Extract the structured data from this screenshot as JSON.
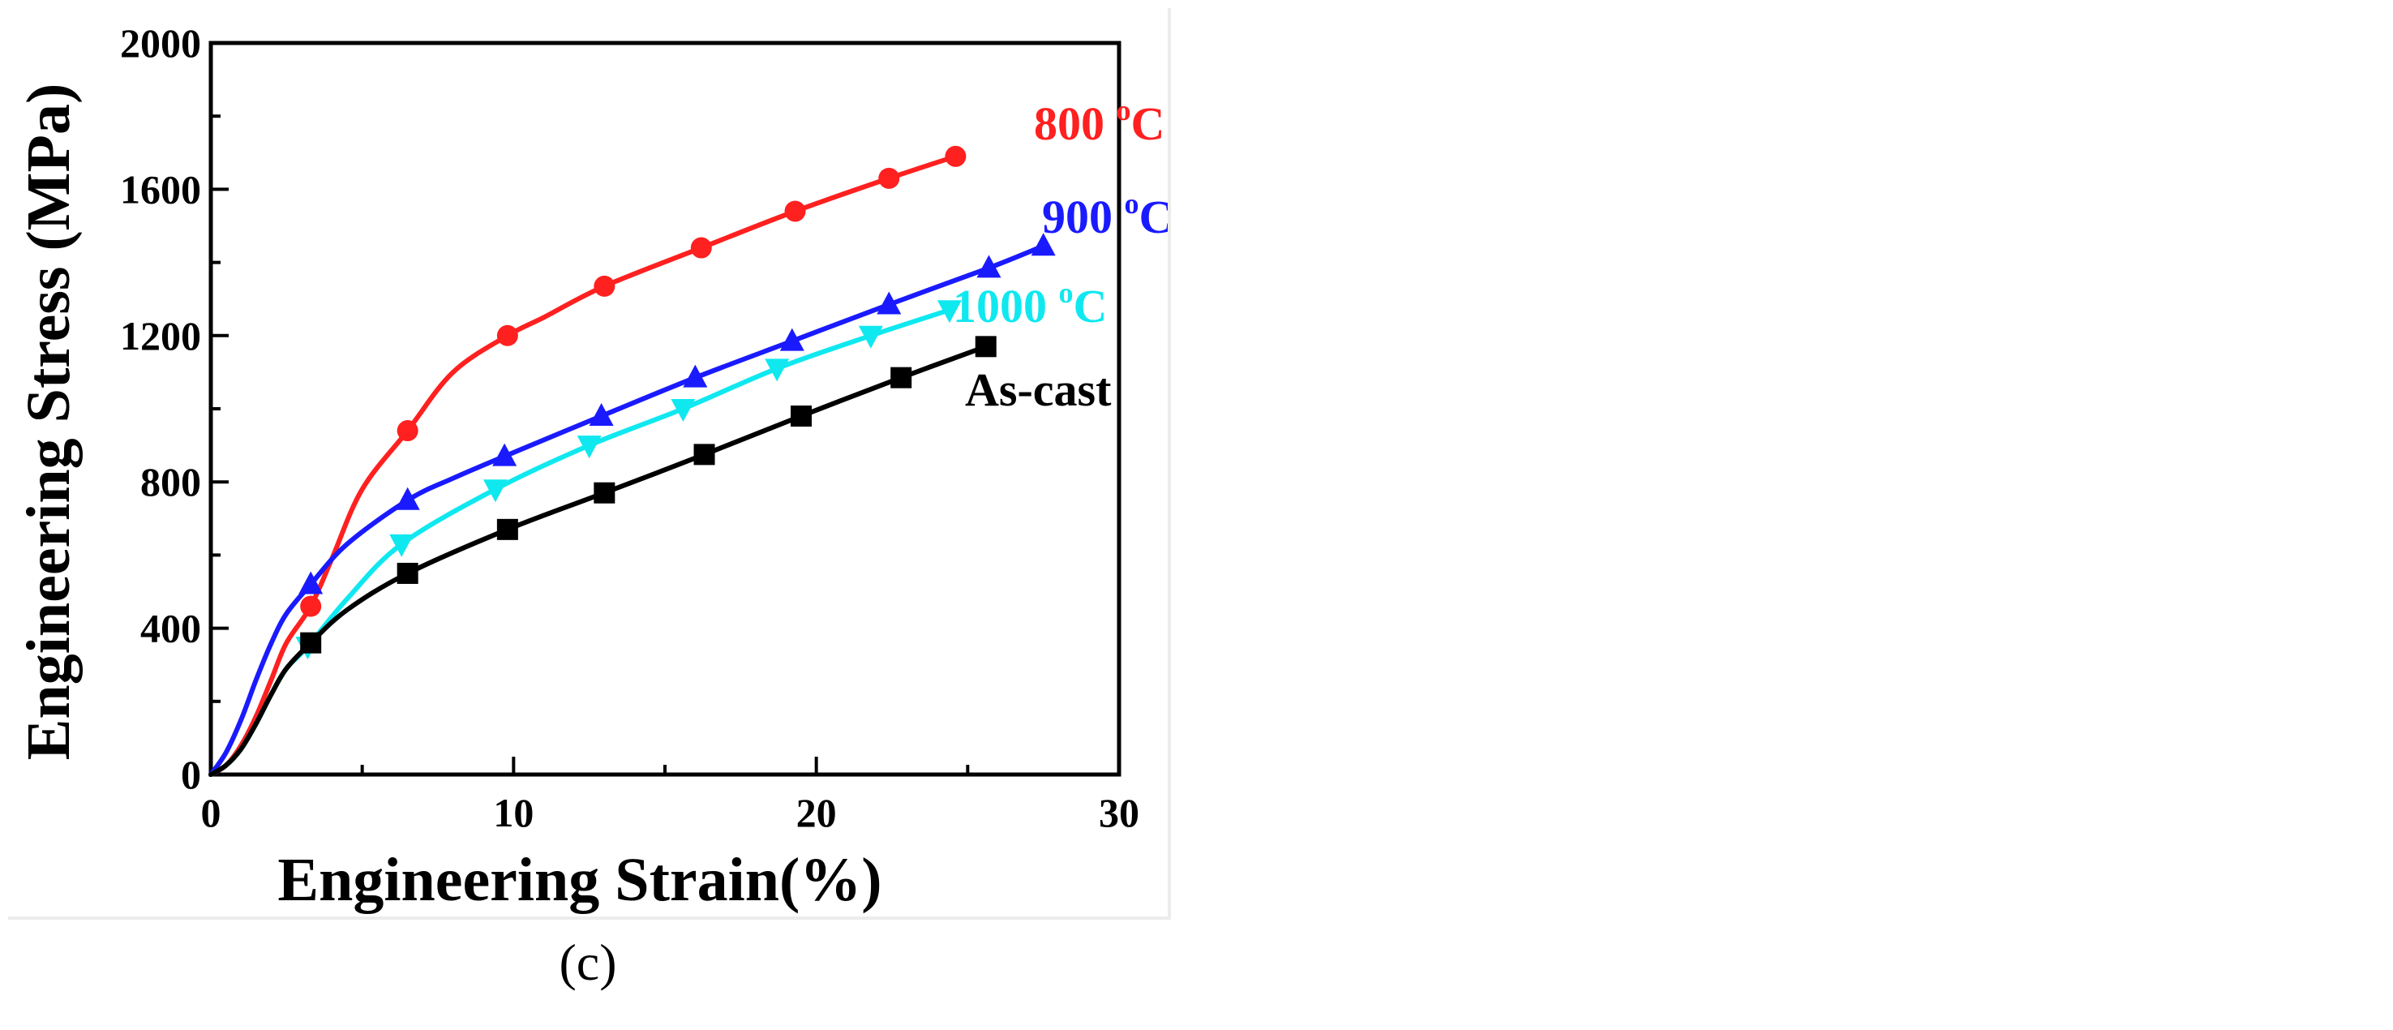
{
  "chart_data": {
    "type": "line",
    "xlabel": "Engineering Strain(%)",
    "ylabel": "Engineering Stress (MPa)",
    "xlim": [
      0,
      30
    ],
    "ylim": [
      0,
      2000
    ],
    "x_ticks": [
      0,
      10,
      20,
      30
    ],
    "y_ticks": [
      0,
      400,
      800,
      1200,
      1600,
      2000
    ],
    "grid": false,
    "series": [
      {
        "name": "800 °C",
        "label_main": "800 ",
        "label_sup": "o",
        "label_tail": "C",
        "color": "#ff2020",
        "marker": "circle",
        "curve_x": [
          0,
          0.5,
          1,
          1.5,
          2,
          2.5,
          3.3,
          4,
          5,
          6.5,
          8,
          9.8,
          11,
          13,
          16.2,
          19.3,
          22.4,
          24.6
        ],
        "curve_y": [
          0,
          25,
          80,
          160,
          260,
          360,
          460,
          590,
          780,
          940,
          1100,
          1200,
          1250,
          1335,
          1440,
          1540,
          1630,
          1690
        ],
        "marker_x": [
          3.3,
          6.5,
          9.8,
          13,
          16.2,
          19.3,
          22.4,
          24.6
        ],
        "marker_y": [
          460,
          940,
          1200,
          1335,
          1440,
          1540,
          1630,
          1690
        ]
      },
      {
        "name": "900 °C",
        "label_main": "900 ",
        "label_sup": "o",
        "label_tail": "C",
        "color": "#1a1aff",
        "marker": "triangle-up",
        "curve_x": [
          0,
          0.5,
          1,
          1.5,
          2,
          2.5,
          3.3,
          4.5,
          6.5,
          8,
          9.7,
          12.9,
          16,
          19.2,
          22.4,
          25.7,
          27.5
        ],
        "curve_y": [
          0,
          60,
          150,
          260,
          360,
          440,
          520,
          630,
          750,
          810,
          870,
          980,
          1085,
          1185,
          1285,
          1385,
          1445
        ],
        "marker_x": [
          3.3,
          6.5,
          9.7,
          12.9,
          16,
          19.2,
          22.4,
          25.7,
          27.5
        ],
        "marker_y": [
          520,
          750,
          870,
          980,
          1085,
          1185,
          1285,
          1385,
          1445
        ]
      },
      {
        "name": "1000 °C",
        "label_main": "1000 ",
        "label_sup": "o",
        "label_tail": "C",
        "color": "#10e8f0",
        "marker": "triangle-down",
        "curve_x": [
          0,
          0.5,
          1,
          1.5,
          2,
          2.5,
          3.2,
          4.5,
          6.3,
          9.4,
          12.5,
          15.6,
          18.7,
          21.8,
          24.4
        ],
        "curve_y": [
          0,
          25,
          70,
          140,
          220,
          290,
          350,
          480,
          630,
          780,
          900,
          1000,
          1110,
          1200,
          1270
        ],
        "marker_x": [
          3.2,
          6.3,
          9.4,
          12.5,
          15.6,
          18.7,
          21.8,
          24.4
        ],
        "marker_y": [
          350,
          630,
          780,
          900,
          1000,
          1110,
          1200,
          1270
        ]
      },
      {
        "name": "As-cast",
        "label_main": "As-cast",
        "label_sup": "",
        "label_tail": "",
        "color": "#000000",
        "marker": "square",
        "curve_x": [
          0,
          0.5,
          1,
          1.5,
          2,
          2.5,
          3.3,
          4.5,
          6.5,
          9.8,
          13,
          16.3,
          19.5,
          22.8,
          25.6
        ],
        "curve_y": [
          0,
          25,
          70,
          140,
          220,
          290,
          360,
          450,
          550,
          670,
          770,
          875,
          980,
          1085,
          1170
        ],
        "marker_x": [
          3.3,
          6.5,
          9.8,
          13,
          16.3,
          19.5,
          22.8,
          25.6
        ],
        "marker_y": [
          360,
          550,
          670,
          770,
          875,
          980,
          1085,
          1170
        ]
      }
    ]
  },
  "caption": "(c)"
}
